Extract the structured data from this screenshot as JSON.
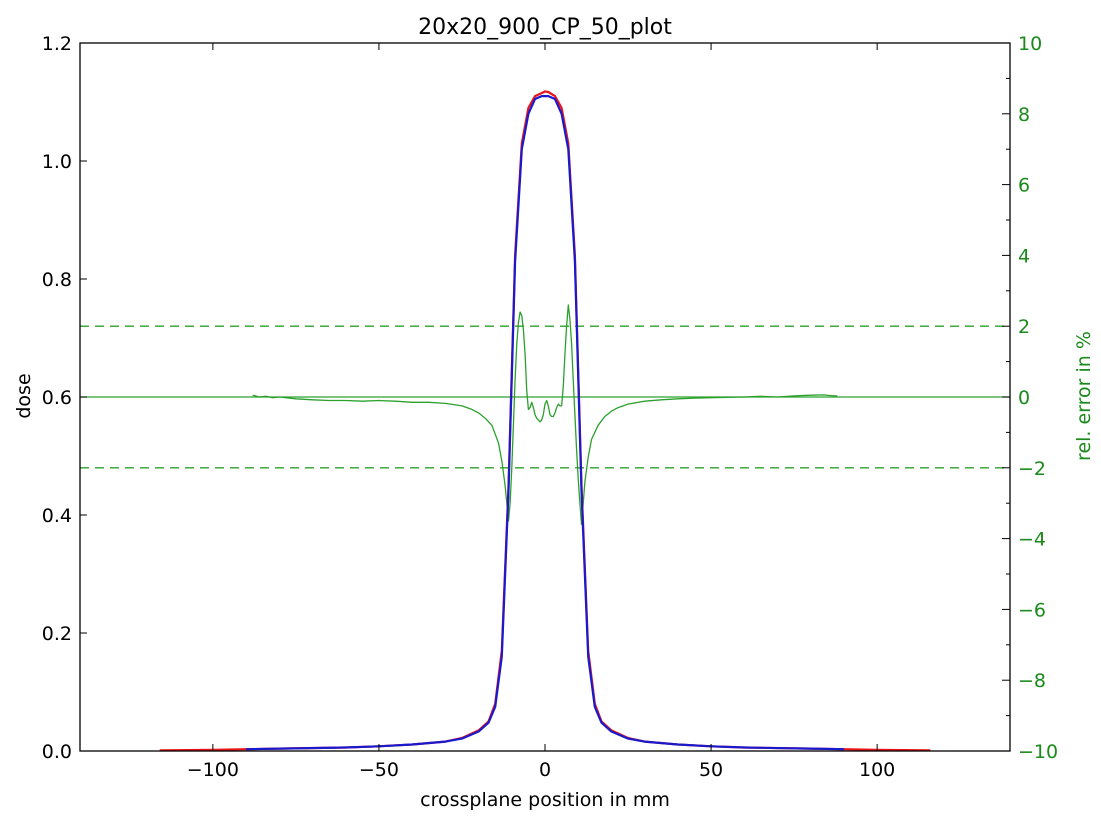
{
  "chart_data": {
    "type": "line",
    "title": "20x20_900_CP_50_plot",
    "xlabel": "crossplane position in mm",
    "ylabel": "dose",
    "y2label": "rel. error in %",
    "xlim": [
      -140,
      140
    ],
    "ylim": [
      0,
      1.2
    ],
    "y2lim": [
      -10,
      10
    ],
    "x_ticks": [
      -100,
      -50,
      0,
      50,
      100
    ],
    "x_tick_labels": [
      "−100",
      "−50",
      "0",
      "50",
      "100"
    ],
    "y_ticks": [
      0.0,
      0.2,
      0.4,
      0.6,
      0.8,
      1.0,
      1.2
    ],
    "y_tick_labels": [
      "0.0",
      "0.2",
      "0.4",
      "0.6",
      "0.8",
      "1.0",
      "1.2"
    ],
    "y2_ticks": [
      -10,
      -8,
      -6,
      -4,
      -2,
      0,
      2,
      4,
      6,
      8,
      10
    ],
    "y2_tick_labels": [
      "−10",
      "−8",
      "−6",
      "−4",
      "−2",
      "0",
      "2",
      "4",
      "6",
      "8",
      "10"
    ],
    "grid": false,
    "colors": {
      "dose_red": "#e8141a",
      "dose_blue": "#1a1acc",
      "error": "#2ca02c",
      "right_axis_text": "#1a8a1a"
    },
    "reference_lines": [
      {
        "axis": "y2",
        "value": 2,
        "style": "dashed"
      },
      {
        "axis": "y2",
        "value": 0,
        "style": "solid"
      },
      {
        "axis": "y2",
        "value": -2,
        "style": "dashed"
      }
    ],
    "series": [
      {
        "axis": "y",
        "color": "red",
        "x": [
          -116,
          -100,
          -90,
          -80,
          -60,
          -50,
          -40,
          -30,
          -25,
          -20,
          -17,
          -15,
          -13,
          -11,
          -9,
          -7,
          -5,
          -3,
          -1,
          0,
          1,
          3,
          5,
          7,
          9,
          11,
          13,
          15,
          17,
          20,
          25,
          30,
          40,
          50,
          60,
          80,
          90,
          100,
          116
        ],
        "y": [
          0.001,
          0.002,
          0.003,
          0.004,
          0.006,
          0.008,
          0.011,
          0.016,
          0.022,
          0.035,
          0.05,
          0.08,
          0.17,
          0.45,
          0.84,
          1.03,
          1.09,
          1.11,
          1.115,
          1.118,
          1.117,
          1.11,
          1.09,
          1.03,
          0.84,
          0.45,
          0.17,
          0.08,
          0.05,
          0.035,
          0.022,
          0.016,
          0.011,
          0.008,
          0.006,
          0.004,
          0.003,
          0.002,
          0.001
        ]
      },
      {
        "axis": "y",
        "color": "blue",
        "x": [
          -90,
          -80,
          -60,
          -50,
          -40,
          -30,
          -25,
          -20,
          -17,
          -15,
          -13,
          -11,
          -9,
          -7,
          -5,
          -3,
          -1,
          0,
          1,
          3,
          5,
          7,
          9,
          11,
          13,
          15,
          17,
          20,
          25,
          30,
          40,
          50,
          60,
          80,
          90
        ],
        "y": [
          0.003,
          0.004,
          0.006,
          0.008,
          0.011,
          0.016,
          0.021,
          0.033,
          0.048,
          0.075,
          0.16,
          0.44,
          0.83,
          1.02,
          1.08,
          1.105,
          1.11,
          1.11,
          1.11,
          1.105,
          1.08,
          1.02,
          0.83,
          0.44,
          0.16,
          0.075,
          0.048,
          0.033,
          0.021,
          0.016,
          0.011,
          0.008,
          0.006,
          0.004,
          0.003
        ]
      },
      {
        "axis": "y2",
        "color": "green",
        "x": [
          -88,
          -86,
          -84,
          -82,
          -80,
          -75,
          -70,
          -65,
          -60,
          -55,
          -50,
          -45,
          -40,
          -35,
          -30,
          -25,
          -22,
          -20,
          -18,
          -16,
          -14,
          -13,
          -12,
          -11.5,
          -11,
          -10.5,
          -10,
          -9.5,
          -9,
          -8.5,
          -8,
          -7.5,
          -7,
          -6.5,
          -6,
          -5.5,
          -5,
          -4.5,
          -4,
          -3.5,
          -3,
          -2.5,
          -2,
          -1.5,
          -1,
          -0.5,
          0,
          0.5,
          1,
          1.5,
          2,
          2.5,
          3,
          3.5,
          4,
          4.5,
          5,
          5.5,
          6,
          6.5,
          7,
          7.5,
          8,
          8.5,
          9,
          9.5,
          10,
          10.5,
          11,
          11.5,
          12,
          13,
          14,
          16,
          18,
          20,
          22,
          25,
          30,
          35,
          40,
          45,
          50,
          55,
          60,
          65,
          70,
          75,
          80,
          84,
          86,
          88
        ],
        "y": [
          0.05,
          0.0,
          0.02,
          -0.02,
          0.0,
          -0.05,
          -0.08,
          -0.1,
          -0.1,
          -0.12,
          -0.1,
          -0.12,
          -0.15,
          -0.15,
          -0.18,
          -0.25,
          -0.35,
          -0.45,
          -0.6,
          -0.8,
          -1.3,
          -1.8,
          -2.5,
          -3.0,
          -3.5,
          -3.0,
          -2.0,
          -0.8,
          0.5,
          1.5,
          2.1,
          2.4,
          2.3,
          1.9,
          1.2,
          0.2,
          -0.35,
          -0.3,
          -0.15,
          -0.3,
          -0.5,
          -0.6,
          -0.65,
          -0.7,
          -0.65,
          -0.5,
          -0.2,
          -0.1,
          -0.25,
          -0.5,
          -0.55,
          -0.55,
          -0.45,
          -0.3,
          -0.2,
          -0.25,
          -0.25,
          0.3,
          1.2,
          2.0,
          2.6,
          2.2,
          1.5,
          0.5,
          -0.5,
          -1.5,
          -2.3,
          -3.0,
          -3.6,
          -3.0,
          -2.4,
          -1.7,
          -1.2,
          -0.8,
          -0.55,
          -0.4,
          -0.3,
          -0.2,
          -0.12,
          -0.08,
          -0.05,
          -0.03,
          -0.02,
          -0.01,
          0.0,
          0.02,
          0.0,
          0.03,
          0.05,
          0.06,
          0.04,
          0.03
        ]
      }
    ]
  }
}
